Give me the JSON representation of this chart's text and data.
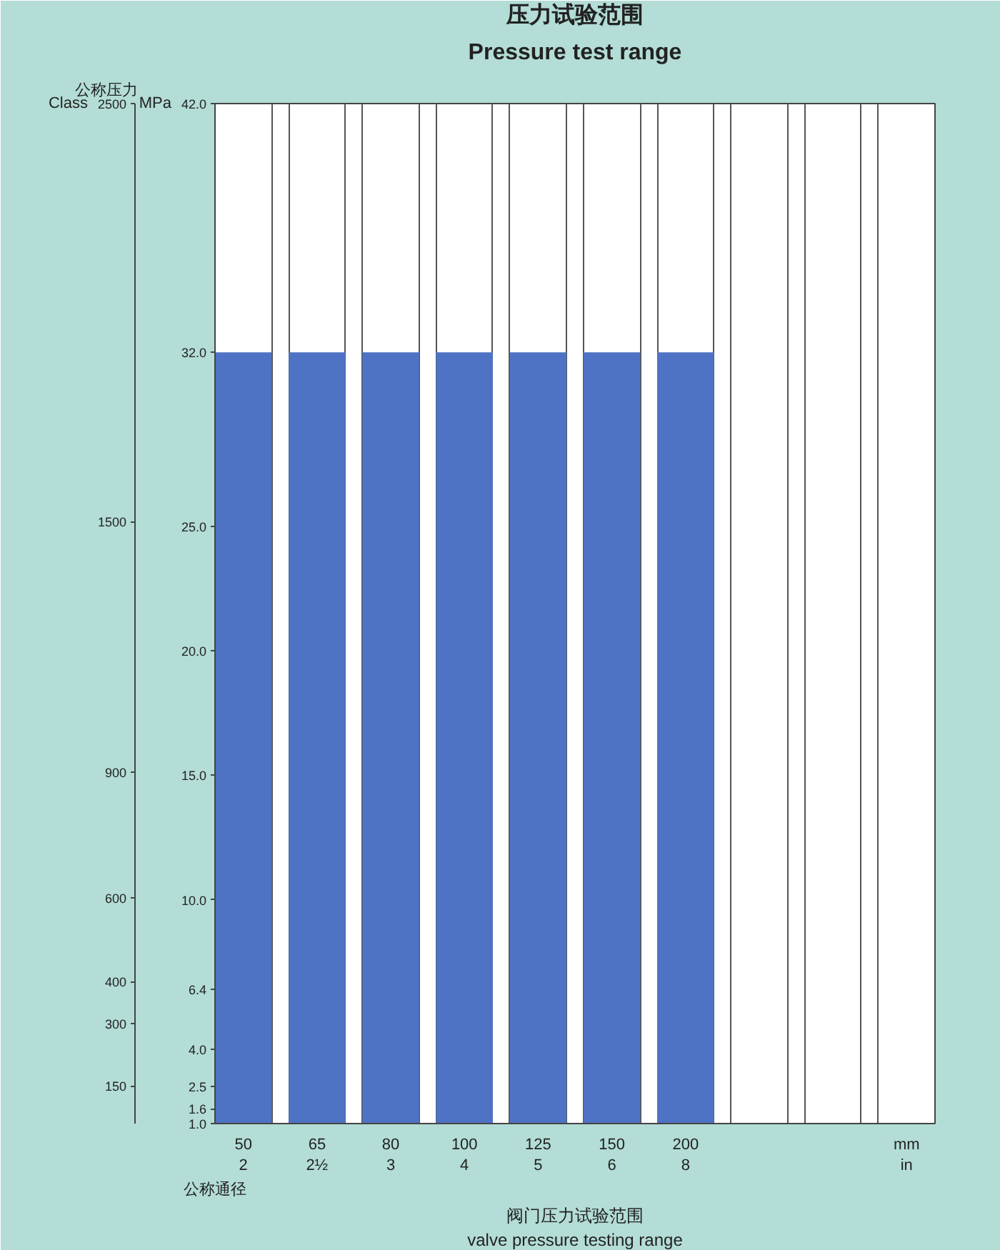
{
  "chart_data": {
    "type": "bar",
    "title": "压力试验范围",
    "subtitle": "Pressure test range",
    "categories": [
      "50\n2",
      "65\n2½",
      "80\n3",
      "100\n4",
      "125\n5",
      "150\n6",
      "200\n8",
      null,
      null,
      "mm\nin"
    ],
    "values": [
      32.0,
      32.0,
      32.0,
      32.0,
      32.0,
      32.0,
      32.0,
      null,
      null,
      null
    ],
    "color": "#4f73c4",
    "xlabel": "公称通径",
    "ylabel": "MPa",
    "y2label": "Class",
    "ylim": [
      1.0,
      42.0
    ],
    "yticks": [
      {
        "value": 1.0,
        "label": "1.0"
      },
      {
        "value": 1.6,
        "label": "1.6"
      },
      {
        "value": 2.5,
        "label": "2.5"
      },
      {
        "value": 4.0,
        "label": "4.0"
      },
      {
        "value": 6.4,
        "label": "6.4"
      },
      {
        "value": 10.0,
        "label": "10.0"
      },
      {
        "value": 15.0,
        "label": "15.0"
      },
      {
        "value": 20.0,
        "label": "20.0"
      },
      {
        "value": 25.0,
        "label": "25.0"
      },
      {
        "value": 32.0,
        "label": "32.0"
      },
      {
        "value": 42.0,
        "label": "42.0"
      }
    ],
    "y2lim": [
      60,
      2500
    ],
    "y2ticks": [
      150,
      300,
      400,
      600,
      900,
      1500,
      2500
    ],
    "grid": "x",
    "annotations": [
      "公称压力",
      "阀门压力试验范围",
      "valve pressure testing range"
    ]
  }
}
